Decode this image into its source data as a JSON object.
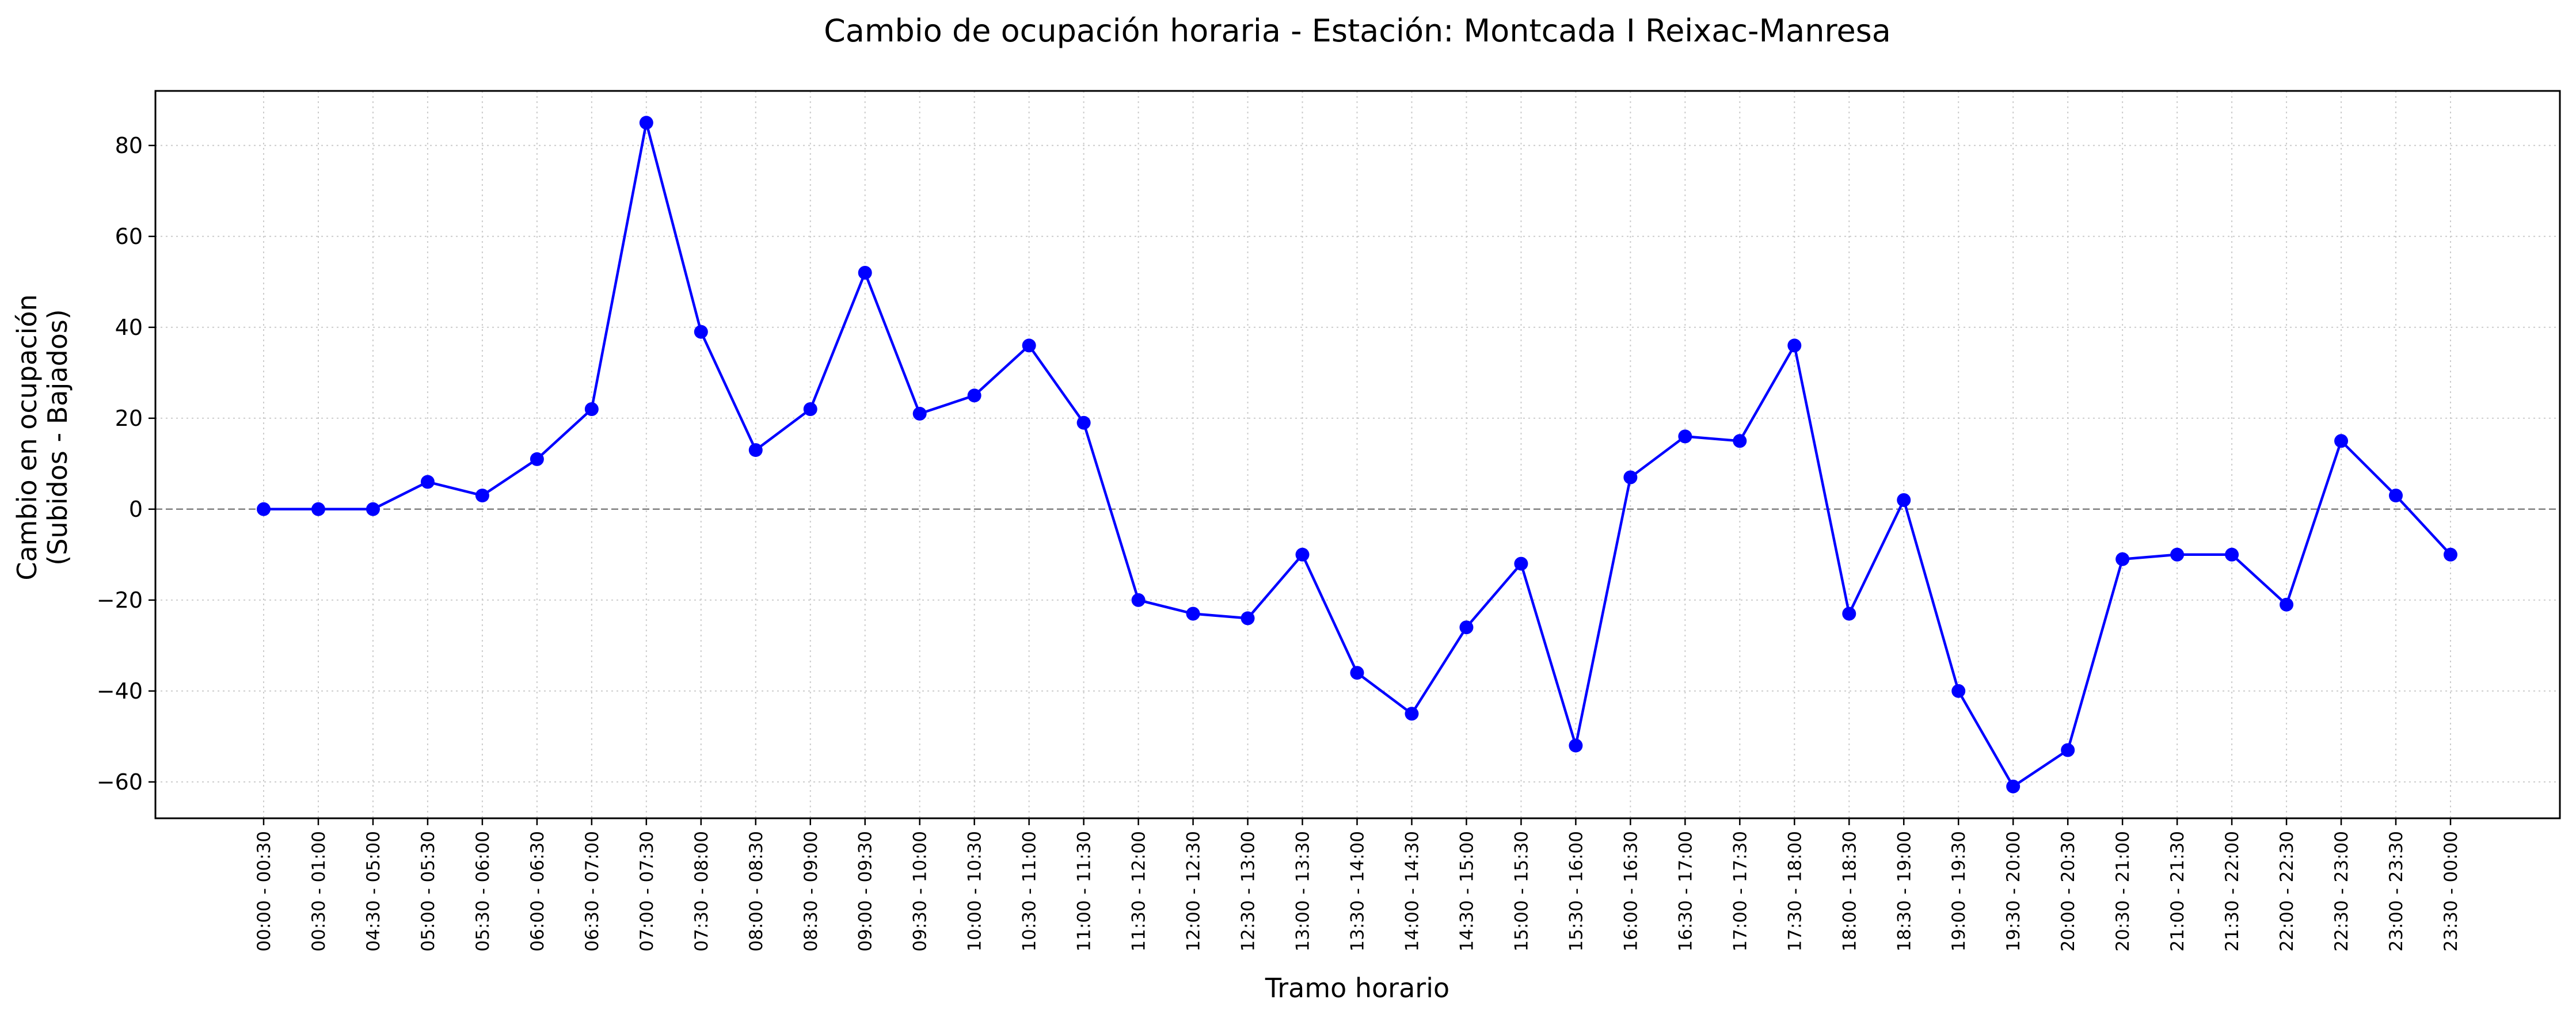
{
  "chart_data": {
    "type": "line",
    "title": "Cambio de ocupación horaria - Estación: Montcada I Reixac-Manresa",
    "xlabel": "Tramo horario",
    "ylabel": [
      "Cambio en ocupación",
      "(Subidos - Bajados)"
    ],
    "categories": [
      "00:00 - 00:30",
      "00:30 - 01:00",
      "04:30 - 05:00",
      "05:00 - 05:30",
      "05:30 - 06:00",
      "06:00 - 06:30",
      "06:30 - 07:00",
      "07:00 - 07:30",
      "07:30 - 08:00",
      "08:00 - 08:30",
      "08:30 - 09:00",
      "09:00 - 09:30",
      "09:30 - 10:00",
      "10:00 - 10:30",
      "10:30 - 11:00",
      "11:00 - 11:30",
      "11:30 - 12:00",
      "12:00 - 12:30",
      "12:30 - 13:00",
      "13:00 - 13:30",
      "13:30 - 14:00",
      "14:00 - 14:30",
      "14:30 - 15:00",
      "15:00 - 15:30",
      "15:30 - 16:00",
      "16:00 - 16:30",
      "16:30 - 17:00",
      "17:00 - 17:30",
      "17:30 - 18:00",
      "18:00 - 18:30",
      "18:30 - 19:00",
      "19:00 - 19:30",
      "19:30 - 20:00",
      "20:00 - 20:30",
      "20:30 - 21:00",
      "21:00 - 21:30",
      "21:30 - 22:00",
      "22:00 - 22:30",
      "22:30 - 23:00",
      "23:00 - 23:30",
      "23:30 - 00:00"
    ],
    "values": [
      0,
      0,
      0,
      6,
      3,
      11,
      22,
      85,
      39,
      13,
      22,
      52,
      21,
      25,
      36,
      19,
      -20,
      -23,
      -24,
      -10,
      -36,
      -45,
      -26,
      -12,
      -52,
      7,
      16,
      15,
      36,
      -23,
      2,
      -40,
      -61,
      -53,
      -11,
      -10,
      -10,
      -21,
      15,
      3,
      -10
    ],
    "ylim": [
      -68,
      92
    ],
    "yticks": [
      -60,
      -40,
      -20,
      0,
      20,
      40,
      60,
      80
    ],
    "reference_line": 0,
    "grid": true,
    "legend": "none",
    "colors": {
      "line": "#0000ff",
      "marker": "#0000ff",
      "grid": "#cccccc",
      "zero_line": "#808080",
      "frame": "#000000"
    }
  }
}
